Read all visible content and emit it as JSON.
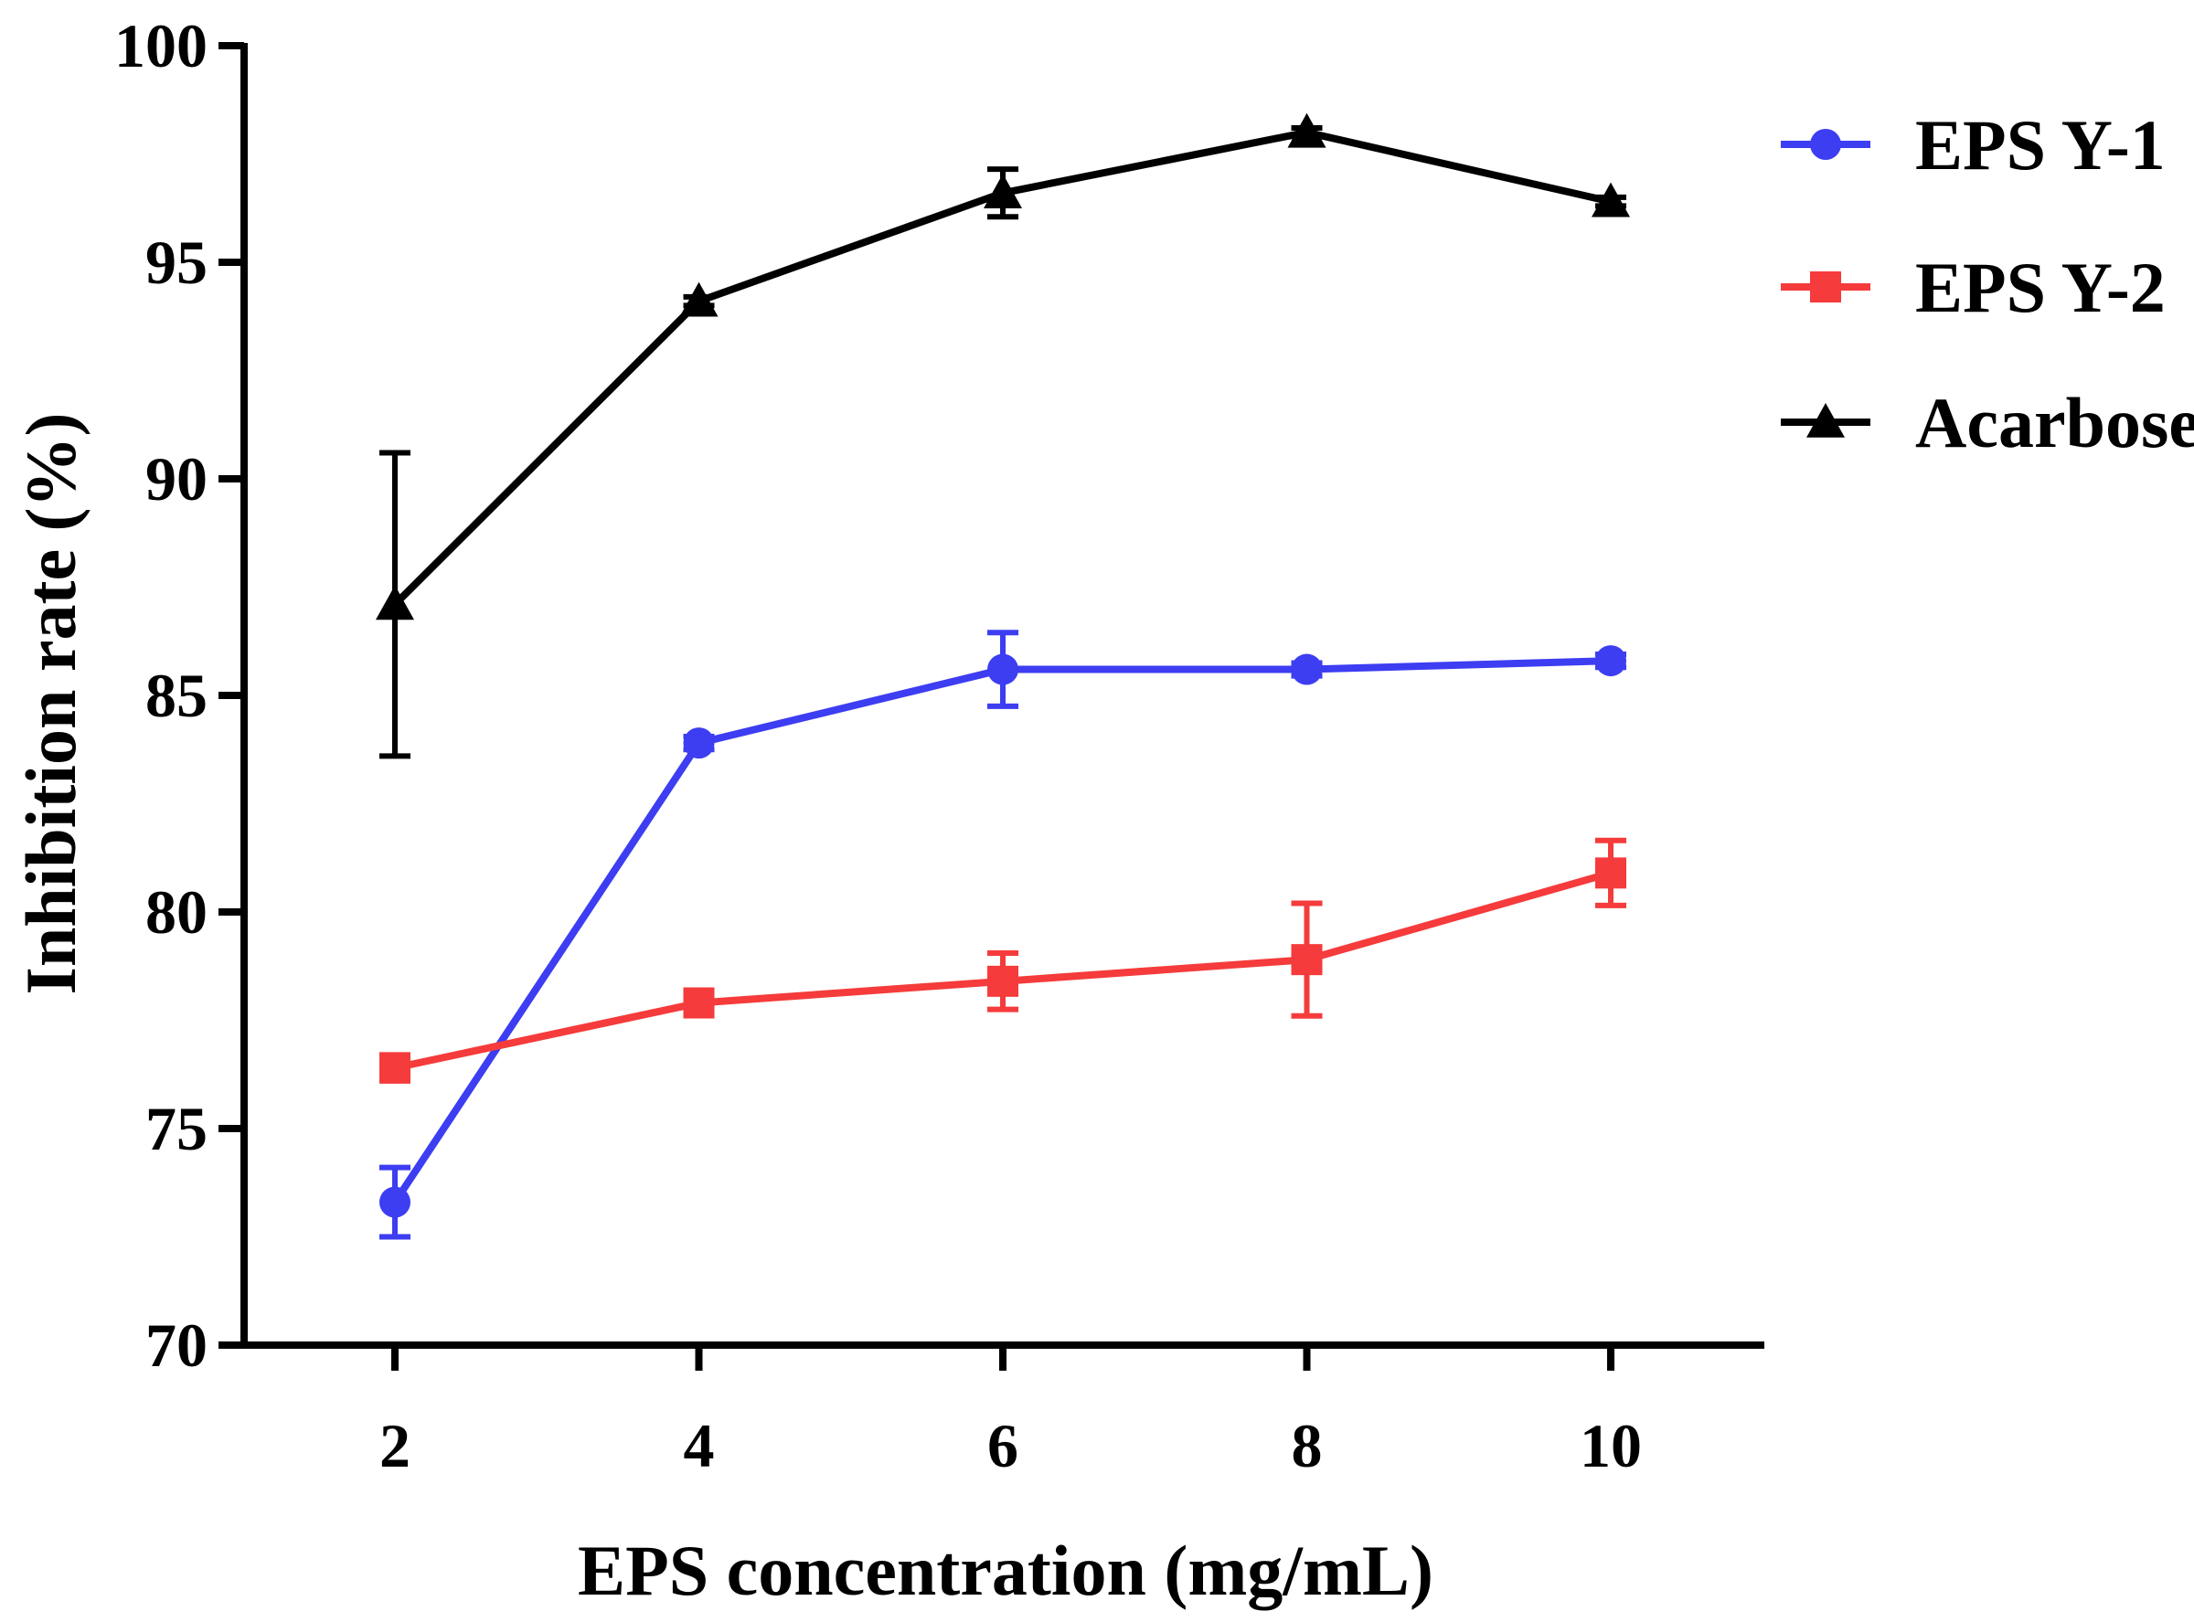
{
  "chart_data": {
    "type": "line",
    "title": "",
    "xlabel": "EPS concentration (mg/mL)",
    "ylabel": "Inhibition rate (%)",
    "x": [
      2,
      4,
      6,
      8,
      10
    ],
    "x_tick_labels": [
      "2",
      "4",
      "6",
      "8",
      "10"
    ],
    "xlim": [
      1,
      11
    ],
    "ylim": [
      70,
      100
    ],
    "y_ticks": [
      70,
      75,
      80,
      85,
      90,
      95,
      100
    ],
    "y_tick_labels": [
      "70",
      "75",
      "80",
      "85",
      "90",
      "95",
      "100"
    ],
    "grid": false,
    "legend_position": "top-right",
    "series": [
      {
        "name": "EPS Y-1",
        "color": "#3d3df2",
        "marker": "circle",
        "values": [
          73.3,
          83.9,
          85.6,
          85.6,
          85.8
        ],
        "errors": [
          0.8,
          0.15,
          0.85,
          0.15,
          0.15
        ]
      },
      {
        "name": "EPS Y-2",
        "color": "#f53b3b",
        "marker": "square",
        "values": [
          76.4,
          77.9,
          78.4,
          78.9,
          80.9
        ],
        "errors": [
          0.3,
          0.15,
          0.65,
          1.3,
          0.75
        ]
      },
      {
        "name": "Acarbose",
        "color": "#000000",
        "marker": "triangle",
        "values": [
          87.1,
          94.1,
          96.6,
          98.0,
          96.4
        ],
        "errors": [
          3.5,
          0.1,
          0.55,
          0.1,
          0.1
        ]
      }
    ]
  }
}
